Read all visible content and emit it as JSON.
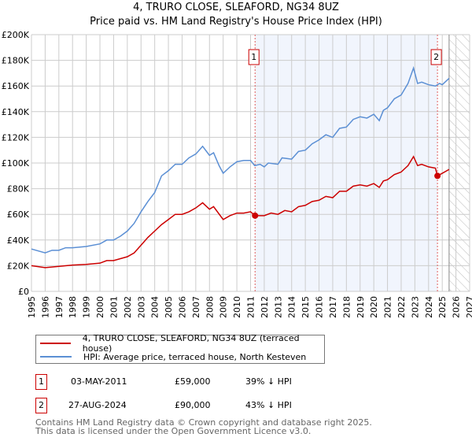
{
  "chart_data": {
    "type": "line",
    "title": "4, TRURO CLOSE, SLEAFORD, NG34 8UZ",
    "subtitle": "Price paid vs. HM Land Registry's House Price Index (HPI)",
    "xlim": [
      1995,
      2027
    ],
    "ylim": [
      0,
      200000
    ],
    "yticks": [
      0,
      20000,
      40000,
      60000,
      80000,
      100000,
      120000,
      140000,
      160000,
      180000,
      200000
    ],
    "ytick_labels": [
      "£0",
      "£20K",
      "£40K",
      "£60K",
      "£80K",
      "£100K",
      "£120K",
      "£140K",
      "£160K",
      "£180K",
      "£200K"
    ],
    "xticks": [
      "1995",
      "1996",
      "1997",
      "1998",
      "1999",
      "2000",
      "2001",
      "2002",
      "2003",
      "2004",
      "2005",
      "2006",
      "2007",
      "2008",
      "2009",
      "2010",
      "2011",
      "2012",
      "2013",
      "2014",
      "2015",
      "2016",
      "2017",
      "2018",
      "2019",
      "2020",
      "2021",
      "2022",
      "2023",
      "2024",
      "2025",
      "2026",
      "2027"
    ],
    "grid": true,
    "shaded_range": [
      2011.33,
      2024.65
    ],
    "forecast_hatch_from": 2025.5,
    "series": [
      {
        "name": "4, TRURO CLOSE, SLEAFORD, NG34 8UZ (terraced house)",
        "color": "#cc0000",
        "x": [
          1995,
          1996,
          1997,
          1998,
          1999,
          2000,
          2000.5,
          2001,
          2002,
          2002.5,
          2003,
          2003.5,
          2004,
          2004.5,
          2005,
          2005.5,
          2006,
          2006.5,
          2007,
          2007.5,
          2008,
          2008.3,
          2009,
          2009.5,
          2010,
          2010.5,
          2011,
          2011.33,
          2012,
          2012.5,
          2013,
          2013.5,
          2014,
          2014.5,
          2015,
          2015.5,
          2016,
          2016.5,
          2017,
          2017.5,
          2018,
          2018.5,
          2019,
          2019.5,
          2020,
          2020.4,
          2020.7,
          2021,
          2021.5,
          2022,
          2022.5,
          2022.9,
          2023.2,
          2023.5,
          2024,
          2024.5,
          2024.65,
          2025,
          2025.5
        ],
        "y": [
          20000,
          18500,
          19500,
          20500,
          21000,
          22000,
          24000,
          24000,
          27000,
          30000,
          36000,
          42000,
          47000,
          52000,
          56000,
          60000,
          60000,
          62000,
          65000,
          69000,
          64000,
          66000,
          56000,
          59000,
          61000,
          61000,
          62000,
          59000,
          59000,
          61000,
          60000,
          63000,
          62000,
          66000,
          67000,
          70000,
          71000,
          74000,
          73000,
          78000,
          78000,
          82000,
          83000,
          82000,
          84000,
          81000,
          86000,
          87000,
          91000,
          93000,
          98000,
          105000,
          98000,
          99000,
          97000,
          96000,
          90000,
          92000,
          95000
        ]
      },
      {
        "name": "HPI: Average price, terraced house, North Kesteven",
        "color": "#5b8fd4",
        "x": [
          1995,
          1996,
          1996.5,
          1997,
          1997.5,
          1998,
          1999,
          2000,
          2000.5,
          2001,
          2001.5,
          2002,
          2002.5,
          2003,
          2003.5,
          2004,
          2004.5,
          2005,
          2005.5,
          2006,
          2006.5,
          2007,
          2007.5,
          2008,
          2008.3,
          2008.7,
          2009,
          2009.5,
          2010,
          2010.5,
          2011,
          2011.3,
          2011.7,
          2012,
          2012.3,
          2013,
          2013.3,
          2014,
          2014.5,
          2015,
          2015.5,
          2016,
          2016.5,
          2017,
          2017.5,
          2018,
          2018.5,
          2019,
          2019.5,
          2020,
          2020.4,
          2020.7,
          2021,
          2021.5,
          2022,
          2022.5,
          2022.9,
          2023.2,
          2023.5,
          2024,
          2024.5,
          2024.8,
          2025,
          2025.5
        ],
        "y": [
          33000,
          30000,
          32000,
          32000,
          34000,
          34000,
          35000,
          37000,
          40000,
          40000,
          43000,
          47000,
          53000,
          62000,
          70000,
          77000,
          90000,
          94000,
          99000,
          99000,
          104000,
          107000,
          113000,
          106000,
          108000,
          98000,
          92000,
          97000,
          101000,
          102000,
          102000,
          98000,
          99000,
          97000,
          100000,
          99000,
          104000,
          103000,
          109000,
          110000,
          115000,
          118000,
          122000,
          120000,
          127000,
          128000,
          134000,
          136000,
          135000,
          138000,
          133000,
          141000,
          143000,
          150000,
          153000,
          162000,
          174000,
          162000,
          163000,
          161000,
          160000,
          162000,
          161000,
          166000
        ]
      }
    ],
    "sales": [
      {
        "label": "1",
        "x": 2011.33,
        "y": 59000,
        "date": "03-MAY-2011",
        "price": "£59,000",
        "delta": "39% ↓ HPI"
      },
      {
        "label": "2",
        "x": 2024.65,
        "y": 90000,
        "date": "27-AUG-2024",
        "price": "£90,000",
        "delta": "43% ↓ HPI"
      }
    ]
  },
  "footer": {
    "line1": "Contains HM Land Registry data © Crown copyright and database right 2025.",
    "line2": "This data is licensed under the Open Government Licence v3.0."
  }
}
